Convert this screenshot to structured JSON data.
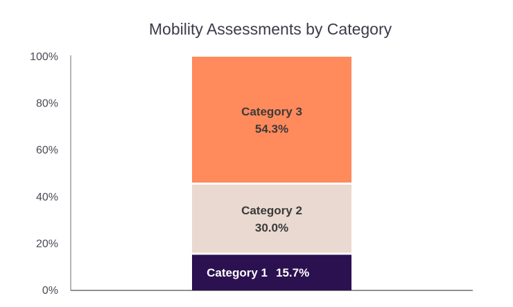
{
  "chart_data": {
    "type": "bar",
    "stacked": true,
    "title": "Mobility Assessments by Category",
    "xlabel": "",
    "ylabel": "",
    "ylim": [
      0,
      100
    ],
    "y_ticks": [
      "0%",
      "20%",
      "40%",
      "60%",
      "80%",
      "100%"
    ],
    "y_tick_values": [
      0,
      20,
      40,
      60,
      80,
      100
    ],
    "grid": false,
    "legend": "none",
    "series": [
      {
        "name": "Category 1",
        "value": 15.7,
        "value_label": "15.7%",
        "color": "#2b1150",
        "text_color": "#ffffff",
        "label_layout": "inline"
      },
      {
        "name": "Category 2",
        "value": 30.0,
        "value_label": "30.0%",
        "color": "#e9d9d0",
        "text_color": "#3a3a3a",
        "label_layout": "stacked"
      },
      {
        "name": "Category 3",
        "value": 54.3,
        "value_label": "54.3%",
        "color": "#ff8a5c",
        "text_color": "#3a3a3a",
        "label_layout": "stacked"
      }
    ]
  }
}
